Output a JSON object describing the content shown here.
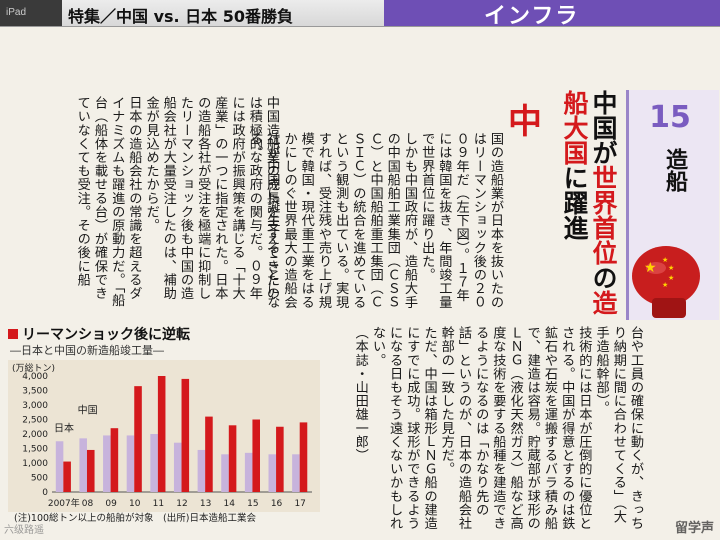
{
  "header": {
    "device": "iPad",
    "section_title": "特集／中国 vs. 日本 50番勝負",
    "category_tab": "インフラ",
    "page_hint": "6"
  },
  "headline": {
    "number": "15",
    "sector": "造船",
    "line1_a": "中国が",
    "line1_b": "世界首位",
    "line2_a": "の",
    "line2_b": "造船大国",
    "line2_c": "に躍進"
  },
  "article": {
    "dropcap": "中",
    "para1": "国の造船業が日本を抜いたのはリーマンショック後の２００９年だ（左下図）。１７年には韓国を抜き、年間竣工量で世界首位に躍り出た。",
    "para2": "しかも中国政府が、造船大手の中国船舶工業集団（ＣＳＳＣ）と中国船舶重工集団（ＣＳＩＣ）の統合を進めているという観測も出ている。実現すれば、受注残や売り上げ規模で韓国・現代重工業をはるかにしのぐ世界最大の造船会社が中国に誕生することになる。",
    "para3": "中国造船業の成長を支えてきたのは積極的な政府の関与だ。０９年には政府が振興策を講じる「十大産業」の一つに指定された。日本の造船各社が受注を極端に抑制したリーマンショック後も中国の造船会社が大量受注したのは、補助金が見込めたからだ。",
    "para4": "日本の造船会社の常識を超えるダイナミズムも躍進の原動力だ。「船台（船体を載せる台）が確保できていなくても受注。その後に船",
    "para5": "台や工員の確保に動くが、きっちり納期に間に合わせてくる」（大手造船幹部）。",
    "para6": "技術的には日本が圧倒的に優位とされる。中国が得意とするのは鉄鉱石や石炭を運搬するバラ積み船で、建造は容易。貯蔵部が球形のＬＮＧ（液化天然ガス）船など高度な技術を要する船種を建造できるようになるのは「かなり先の話」というのが、日本の造船会社幹部の一致した見方だ。",
    "para7": "ただ、中国は箱形ＬＮＧ船の建造にすでに成功。球形ができるようになる日もそう遠くないかもしれない。",
    "byline": "（本誌・山田雄一郎）"
  },
  "chart": {
    "title": "リーマンショック後に逆転",
    "subtitle": "―日本と中国の新造船竣工量―",
    "unit": "(万総トン)",
    "note": "(注)100総トン以上の船舶が対象　(出所)日本造船工業会",
    "japan_label": "日本",
    "china_label": "中国",
    "japan_color": "#c7b3dc",
    "china_color": "#d4191c"
  },
  "chart_data": {
    "type": "bar",
    "categories": [
      "2007年",
      "08",
      "09",
      "10",
      "11",
      "12",
      "13",
      "14",
      "15",
      "16",
      "17"
    ],
    "series": [
      {
        "name": "日本",
        "values": [
          1750,
          1850,
          1950,
          1950,
          2000,
          1700,
          1450,
          1300,
          1350,
          1300,
          1300
        ]
      },
      {
        "name": "中国",
        "values": [
          1050,
          1450,
          2200,
          3650,
          4000,
          3900,
          2600,
          2300,
          2500,
          2250,
          2400
        ]
      }
    ],
    "yticks": [
      "0",
      "500",
      "1,000",
      "1,500",
      "2,000",
      "2,500",
      "3,000",
      "3,500",
      "4,000"
    ],
    "ylim": [
      0,
      4000
    ],
    "ylabel": "(万総トン)",
    "grid": false
  },
  "watermark": {
    "right": "留学声",
    "left": "六级路遥"
  }
}
